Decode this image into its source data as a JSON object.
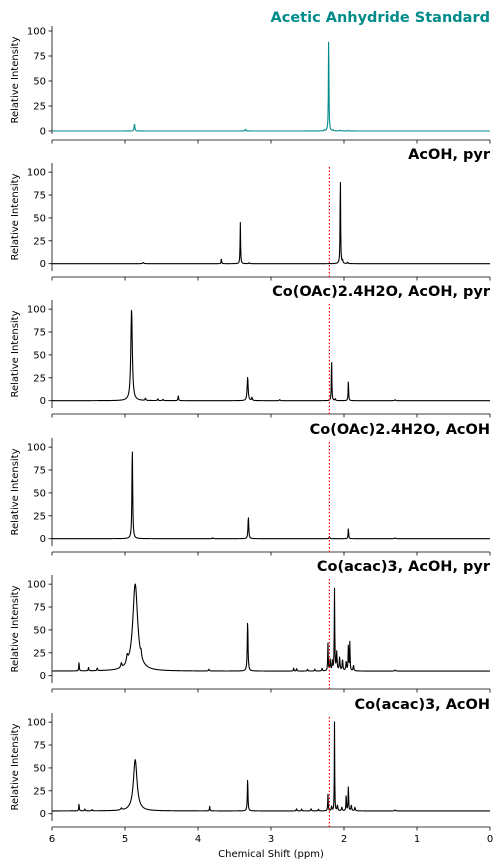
{
  "chart_data": [
    {
      "type": "line",
      "title": "Acetic Anhydride Standard",
      "title_color": "#008B8B",
      "line_color": "#008B8B",
      "ylabel": "Relative Intensity",
      "xlabel": "",
      "xlim": [
        6,
        0
      ],
      "ylim": [
        -3,
        105
      ],
      "yticks": [
        0,
        25,
        50,
        75,
        100
      ],
      "xticks": [
        6,
        5,
        4,
        3,
        2,
        1,
        0
      ],
      "x_tick_labels_visible": false,
      "reference_line": null,
      "baseline": 0,
      "peaks": [
        {
          "x": 4.87,
          "height": 7,
          "width": 0.006
        },
        {
          "x": 3.35,
          "height": 1.8,
          "width": 0.006
        },
        {
          "x": 2.21,
          "height": 100,
          "width": 0.004
        },
        {
          "x": 2.27,
          "height": 1.2,
          "width": 0.005
        },
        {
          "x": 2.15,
          "height": 1.0,
          "width": 0.005
        },
        {
          "x": 2.05,
          "height": 0.8,
          "width": 0.006
        },
        {
          "x": 1.95,
          "height": 0.6,
          "width": 0.006
        }
      ]
    },
    {
      "type": "line",
      "title": "AcOH, pyr",
      "title_color": "#000000",
      "line_color": "#000000",
      "ylabel": "Relative Intensity",
      "xlabel": "",
      "xlim": [
        6,
        0
      ],
      "ylim": [
        -8,
        110
      ],
      "yticks": [
        0,
        25,
        50,
        75,
        100
      ],
      "xticks": [
        6,
        5,
        4,
        3,
        2,
        1,
        0
      ],
      "x_tick_labels_visible": false,
      "reference_line": {
        "x": 2.2,
        "color": "#ff0000"
      },
      "baseline": 0,
      "peaks": [
        {
          "x": 4.75,
          "height": 1.2,
          "width": 0.01
        },
        {
          "x": 3.68,
          "height": 5.5,
          "width": 0.004
        },
        {
          "x": 3.42,
          "height": 45,
          "width": 0.004
        },
        {
          "x": 3.3,
          "height": 1.0,
          "width": 0.006
        },
        {
          "x": 2.05,
          "height": 100,
          "width": 0.004
        },
        {
          "x": 2.02,
          "height": 3.5,
          "width": 0.005
        },
        {
          "x": 1.95,
          "height": 1.5,
          "width": 0.006
        }
      ]
    },
    {
      "type": "line",
      "title": "Co(OAc)2.4H2O, AcOH, pyr",
      "title_color": "#000000",
      "line_color": "#000000",
      "ylabel": "Relative Intensity",
      "xlabel": "",
      "xlim": [
        6,
        0
      ],
      "ylim": [
        -8,
        110
      ],
      "yticks": [
        0,
        25,
        50,
        75,
        100
      ],
      "xticks": [
        6,
        5,
        4,
        3,
        2,
        1,
        0
      ],
      "x_tick_labels_visible": false,
      "reference_line": {
        "x": 2.2,
        "color": "#ff0000"
      },
      "baseline": 0,
      "peaks": [
        {
          "x": 4.91,
          "height": 100,
          "width": 0.012
        },
        {
          "x": 4.72,
          "height": 2.5,
          "width": 0.006
        },
        {
          "x": 4.55,
          "height": 1.8,
          "width": 0.006
        },
        {
          "x": 4.48,
          "height": 1.5,
          "width": 0.006
        },
        {
          "x": 4.27,
          "height": 5.5,
          "width": 0.005
        },
        {
          "x": 3.32,
          "height": 26,
          "width": 0.008
        },
        {
          "x": 3.26,
          "height": 3.5,
          "width": 0.006
        },
        {
          "x": 2.88,
          "height": 1.2,
          "width": 0.006
        },
        {
          "x": 2.17,
          "height": 47,
          "width": 0.004
        },
        {
          "x": 2.12,
          "height": 2,
          "width": 0.006
        },
        {
          "x": 1.94,
          "height": 23,
          "width": 0.004
        },
        {
          "x": 1.3,
          "height": 1.0,
          "width": 0.008
        }
      ]
    },
    {
      "type": "line",
      "title": "Co(OAc)2.4H2O, AcOH",
      "title_color": "#000000",
      "line_color": "#000000",
      "ylabel": "Relative Intensity",
      "xlabel": "",
      "xlim": [
        6,
        0
      ],
      "ylim": [
        -8,
        110
      ],
      "yticks": [
        0,
        25,
        50,
        75,
        100
      ],
      "xticks": [
        6,
        5,
        4,
        3,
        2,
        1,
        0
      ],
      "x_tick_labels_visible": false,
      "reference_line": {
        "x": 2.2,
        "color": "#ff0000"
      },
      "baseline": 0,
      "peaks": [
        {
          "x": 4.9,
          "height": 100,
          "width": 0.006
        },
        {
          "x": 3.8,
          "height": 1.0,
          "width": 0.006
        },
        {
          "x": 3.31,
          "height": 24,
          "width": 0.006
        },
        {
          "x": 2.2,
          "height": 2.5,
          "width": 0.005
        },
        {
          "x": 1.94,
          "height": 12,
          "width": 0.004
        },
        {
          "x": 1.3,
          "height": 0.8,
          "width": 0.008
        }
      ]
    },
    {
      "type": "line",
      "title": "Co(acac)3, AcOH, pyr",
      "title_color": "#000000",
      "line_color": "#000000",
      "ylabel": "Relative Intensity",
      "xlabel": "",
      "xlim": [
        6,
        0
      ],
      "ylim": [
        -8,
        110
      ],
      "yticks": [
        0,
        25,
        50,
        75,
        100
      ],
      "xticks": [
        6,
        5,
        4,
        3,
        2,
        1,
        0
      ],
      "x_tick_labels_visible": false,
      "reference_line": {
        "x": 2.2,
        "color": "#ff0000"
      },
      "baseline": 5,
      "peaks": [
        {
          "x": 5.63,
          "height": 10,
          "width": 0.004
        },
        {
          "x": 5.5,
          "height": 4,
          "width": 0.004
        },
        {
          "x": 5.38,
          "height": 3,
          "width": 0.005
        },
        {
          "x": 5.05,
          "height": 5,
          "width": 0.01
        },
        {
          "x": 4.97,
          "height": 8,
          "width": 0.012
        },
        {
          "x": 4.86,
          "height": 95,
          "width": 0.04
        },
        {
          "x": 4.78,
          "height": 6,
          "width": 0.006
        },
        {
          "x": 3.85,
          "height": 2,
          "width": 0.006
        },
        {
          "x": 3.32,
          "height": 55,
          "width": 0.006
        },
        {
          "x": 2.69,
          "height": 3.5,
          "width": 0.004
        },
        {
          "x": 2.65,
          "height": 3,
          "width": 0.004
        },
        {
          "x": 2.5,
          "height": 2,
          "width": 0.005
        },
        {
          "x": 2.4,
          "height": 2,
          "width": 0.005
        },
        {
          "x": 2.3,
          "height": 3,
          "width": 0.005
        },
        {
          "x": 2.22,
          "height": 30,
          "width": 0.004
        },
        {
          "x": 2.19,
          "height": 12,
          "width": 0.006
        },
        {
          "x": 2.16,
          "height": 10,
          "width": 0.005
        },
        {
          "x": 2.13,
          "height": 89,
          "width": 0.004
        },
        {
          "x": 2.1,
          "height": 20,
          "width": 0.006
        },
        {
          "x": 2.06,
          "height": 15,
          "width": 0.006
        },
        {
          "x": 2.02,
          "height": 12,
          "width": 0.006
        },
        {
          "x": 1.97,
          "height": 10,
          "width": 0.006
        },
        {
          "x": 1.94,
          "height": 30,
          "width": 0.004
        },
        {
          "x": 1.92,
          "height": 31,
          "width": 0.004
        },
        {
          "x": 1.87,
          "height": 6,
          "width": 0.006
        },
        {
          "x": 1.3,
          "height": 1.2,
          "width": 0.008
        }
      ]
    },
    {
      "type": "line",
      "title": "Co(acac)3, AcOH",
      "title_color": "#000000",
      "line_color": "#000000",
      "ylabel": "Relative Intensity",
      "xlabel": "Chemical Shift (ppm)",
      "xlim": [
        6,
        0
      ],
      "ylim": [
        -8,
        110
      ],
      "yticks": [
        0,
        25,
        50,
        75,
        100
      ],
      "xticks": [
        6,
        5,
        4,
        3,
        2,
        1,
        0
      ],
      "x_tick_labels_visible": true,
      "reference_line": {
        "x": 2.2,
        "color": "#ff0000"
      },
      "baseline": 3,
      "peaks": [
        {
          "x": 5.63,
          "height": 8,
          "width": 0.004
        },
        {
          "x": 5.55,
          "height": 2,
          "width": 0.005
        },
        {
          "x": 5.45,
          "height": 1.5,
          "width": 0.005
        },
        {
          "x": 5.05,
          "height": 2,
          "width": 0.01
        },
        {
          "x": 4.86,
          "height": 56,
          "width": 0.03
        },
        {
          "x": 3.84,
          "height": 5,
          "width": 0.004
        },
        {
          "x": 3.32,
          "height": 36,
          "width": 0.005
        },
        {
          "x": 2.65,
          "height": 2.5,
          "width": 0.005
        },
        {
          "x": 2.58,
          "height": 2,
          "width": 0.005
        },
        {
          "x": 2.45,
          "height": 2.5,
          "width": 0.005
        },
        {
          "x": 2.35,
          "height": 2,
          "width": 0.005
        },
        {
          "x": 2.22,
          "height": 18,
          "width": 0.004
        },
        {
          "x": 2.17,
          "height": 5,
          "width": 0.005
        },
        {
          "x": 2.13,
          "height": 97,
          "width": 0.003
        },
        {
          "x": 2.09,
          "height": 6,
          "width": 0.006
        },
        {
          "x": 2.03,
          "height": 4,
          "width": 0.006
        },
        {
          "x": 1.97,
          "height": 18,
          "width": 0.004
        },
        {
          "x": 1.94,
          "height": 29,
          "width": 0.004
        },
        {
          "x": 1.9,
          "height": 6,
          "width": 0.006
        },
        {
          "x": 1.85,
          "height": 4,
          "width": 0.006
        },
        {
          "x": 1.3,
          "height": 1.0,
          "width": 0.008
        }
      ]
    }
  ]
}
